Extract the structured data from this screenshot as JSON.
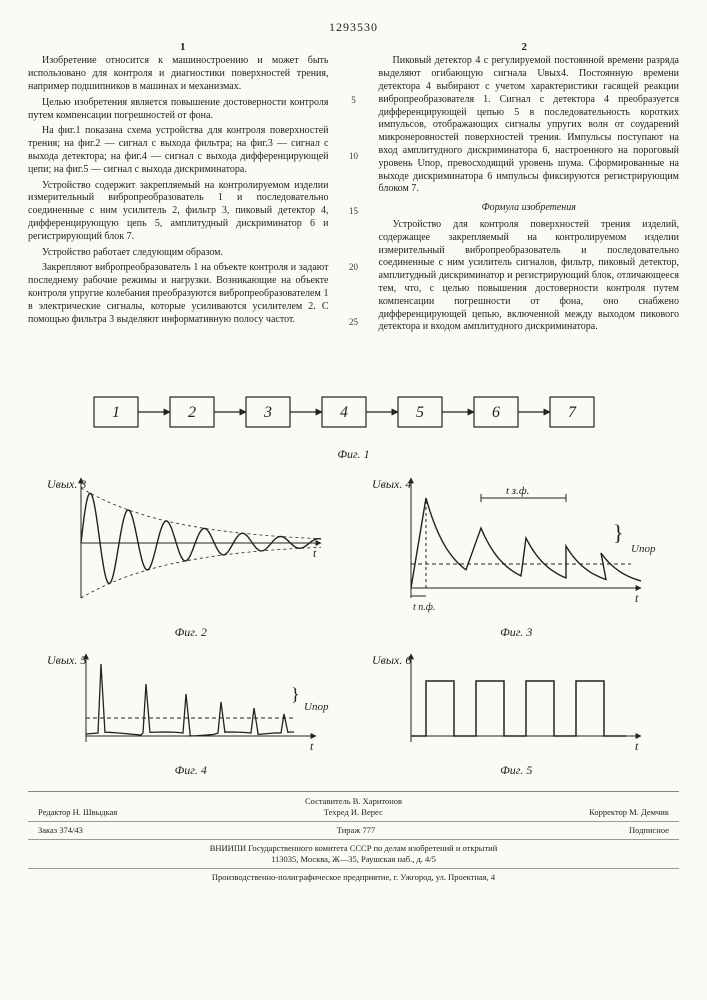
{
  "doc_number": "1293530",
  "col_left_num": "1",
  "col_right_num": "2",
  "left_col": {
    "p1": "Изобретение относится к машиностроению и может быть использовано для контроля и диагностики поверхностей трения, например подшипников в машинах и механизмах.",
    "p2": "Целью изобретения является повышение достоверности контроля путем компенсации погрешностей от фона.",
    "p3": "На фиг.1 показана схема устройства для контроля поверхностей трения; на фиг.2 — сигнал с выхода фильтра; на фиг.3 — сигнал с выхода детектора; на фиг.4 — сигнал с выхода дифференцирующей цепи; на фиг.5 — сигнал с выхода дискриминатора.",
    "p4": "Устройство содержит закрепляемый на контролируемом изделии измерительный вибропреобразователь 1 и последовательно соединенные с ним усилитель 2, фильтр 3, пиковый детектор 4, дифференцирующую цепь 5, амплитудный дискриминатор 6 и регистрирующий блок 7.",
    "p5": "Устройство работает следующим образом.",
    "p6": "Закрепляют вибропреобразователь 1 на объекте контроля и задают последнему рабочие режимы и нагрузки. Возникающие на объекте контроля упругие колебания преобразуются вибропреобразователем 1 в электрические сигналы, которые усиливаются усилителем 2. С помощью фильтра 3 выделяют информативную полосу частот."
  },
  "right_col": {
    "p1": "Пиковый детектор 4 с регулируемой постоянной времени разряда выделяют огибающую сигнала Uвых4. Постоянную времени детектора 4 выбирают с учетом характеристики гасящей реакции вибропреобразователя 1. Сигнал с детектора 4 преобразуется дифференцирующей цепью 5 в последовательность коротких импульсов, отображающих сигналы упругих волн от соударений микронеровностей поверхностей трения. Импульсы поступают на вход амплитудного дискриминатора 6, настроенного на пороговый уровень Uпор, превосходящий уровень шума. Сформированные на выходе дискриминатора 6 импульсы фиксируются регистрирующим блоком 7.",
    "formula_title": "Формула изобретения",
    "p2": "Устройство для контроля поверхностей трения изделий, содержащее закрепляемый на контролируемом изделии измерительный вибропреобразователь и последовательно соединенные с ним усилитель сигналов, фильтр, пиковый детектор, амплитудный дискриминатор и регистрирующий блок, отличающееся тем, что, с целью повышения достоверности контроля путем компенсации погрешности от фона, оно снабжено дифференцирующей цепью, включенной между выходом пикового детектора и входом амплитудного дискриминатора."
  },
  "gutter_numbers": [
    "5",
    "10",
    "15",
    "20",
    "25"
  ],
  "fig1": {
    "caption": "Фиг. 1",
    "blocks": [
      "1",
      "2",
      "3",
      "4",
      "5",
      "6",
      "7"
    ],
    "box_fill": "#fafaf7",
    "stroke": "#222"
  },
  "fig2": {
    "caption": "Фиг. 2",
    "ylabel": "Uвых. 3",
    "xlabel": "t",
    "stroke": "#222"
  },
  "fig3": {
    "caption": "Фиг. 3",
    "ylabel": "Uвых. 4",
    "xlabel": "t",
    "ann_tz": "t з.ф.",
    "ann_tn": "t п.ф.",
    "ann_upor": "Uпор",
    "stroke": "#222"
  },
  "fig4": {
    "caption": "Фиг. 4",
    "ylabel": "Uвых. 5",
    "xlabel": "t",
    "ann_upor": "Uпор",
    "stroke": "#222"
  },
  "fig5": {
    "caption": "Фиг. 5",
    "ylabel": "Uвых. 6",
    "xlabel": "t",
    "stroke": "#222"
  },
  "footer": {
    "compiler": "Составитель В. Харитонов",
    "editor": "Редактор Н. Швыдкая",
    "techred": "Техред И. Верес",
    "corrector": "Корректор М. Демчик",
    "order": "Заказ 374/43",
    "tirage": "Тираж 777",
    "sub": "Подписное",
    "org1": "ВНИИПИ Государственного комитета СССР по делам изобретений и открытий",
    "addr1": "113035, Москва, Ж—35, Раушская наб., д. 4/5",
    "org2": "Производственно-полиграфическое предприятие, г. Ужгород, ул. Проектная, 4"
  }
}
